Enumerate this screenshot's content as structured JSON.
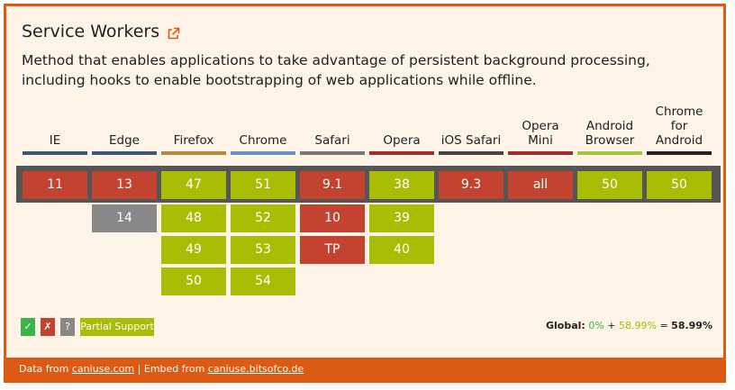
{
  "feature": {
    "title": "Service Workers",
    "description": "Method that enables applications to take advantage of persistent background processing, including hooks to enable bootstrapping of web applications while offline.",
    "title_icon": "external-link-icon"
  },
  "browsers": [
    {
      "name": "IE",
      "bar_color": "#3d5577",
      "versions": [
        {
          "label": "11",
          "status": "n"
        }
      ]
    },
    {
      "name": "Edge",
      "bar_color": "#3d5577",
      "versions": [
        {
          "label": "13",
          "status": "n"
        },
        {
          "label": "14",
          "status": "u"
        }
      ]
    },
    {
      "name": "Firefox",
      "bar_color": "#b5893c",
      "versions": [
        {
          "label": "47",
          "status": "a"
        },
        {
          "label": "48",
          "status": "a"
        },
        {
          "label": "49",
          "status": "a"
        },
        {
          "label": "50",
          "status": "a"
        }
      ]
    },
    {
      "name": "Chrome",
      "bar_color": "#6a8fc5",
      "versions": [
        {
          "label": "51",
          "status": "a"
        },
        {
          "label": "52",
          "status": "a"
        },
        {
          "label": "53",
          "status": "a"
        },
        {
          "label": "54",
          "status": "a"
        }
      ]
    },
    {
      "name": "Safari",
      "bar_color": "#777777",
      "versions": [
        {
          "label": "9.1",
          "status": "n"
        },
        {
          "label": "10",
          "status": "n"
        },
        {
          "label": "TP",
          "status": "n"
        }
      ]
    },
    {
      "name": "Opera",
      "bar_color": "#a52a2a",
      "versions": [
        {
          "label": "38",
          "status": "a"
        },
        {
          "label": "39",
          "status": "a"
        },
        {
          "label": "40",
          "status": "a"
        }
      ]
    },
    {
      "name": "iOS Safari",
      "bar_color": "#444444",
      "versions": [
        {
          "label": "9.3",
          "status": "n"
        }
      ]
    },
    {
      "name": "Opera Mini",
      "bar_color": "#a52a2a",
      "versions": [
        {
          "label": "all",
          "status": "n"
        }
      ]
    },
    {
      "name": "Android Browser",
      "bar_color": "#a4c639",
      "versions": [
        {
          "label": "50",
          "status": "a"
        }
      ]
    },
    {
      "name": "Chrome for Android",
      "bar_color": "#222222",
      "versions": [
        {
          "label": "50",
          "status": "a"
        }
      ]
    }
  ],
  "status_colors": {
    "y": "#39b54a",
    "n": "#c44230",
    "u": "#888888",
    "a": "#a8bd04"
  },
  "legend": [
    {
      "label": "✓",
      "status": "y"
    },
    {
      "label": "✗",
      "status": "n"
    },
    {
      "label": "?",
      "status": "u"
    },
    {
      "label": "Partial Support",
      "status": "a"
    }
  ],
  "global": {
    "prefix": "Global:",
    "supported": "0%",
    "plus": "+",
    "partial": "58.99%",
    "equals": "=",
    "total": "58.99%"
  },
  "footer": {
    "data_from": "Data from",
    "data_link": "caniuse.com",
    "separator": "|",
    "embed_from": "Embed from",
    "embed_link": "caniuse.bitsofco.de"
  }
}
